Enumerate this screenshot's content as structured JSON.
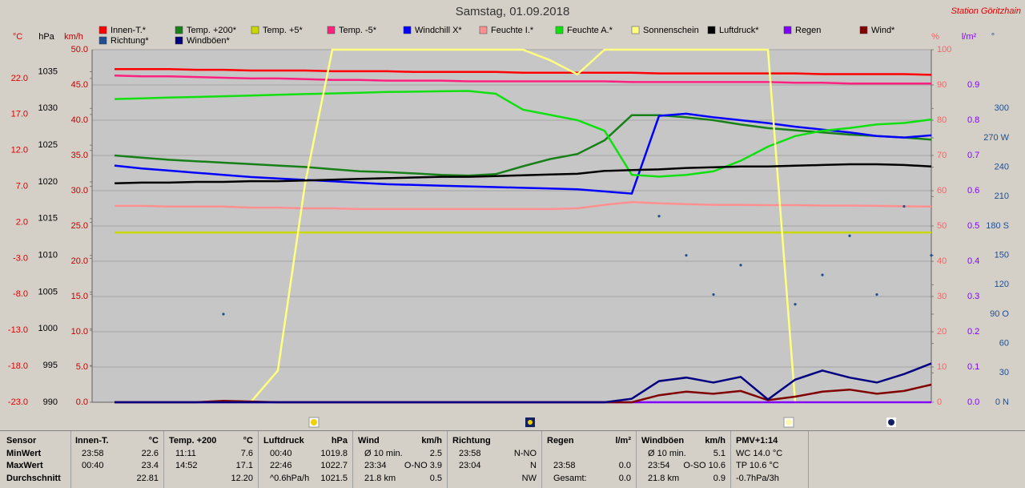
{
  "chart_data": {
    "type": "line",
    "title": "Samstag, 01.09.2018",
    "station": "Station Göritzhain",
    "grid": true,
    "axes": [
      {
        "label": "°C",
        "color": "#e00000",
        "ylim": [
          -23,
          26
        ],
        "yticks": [
          {
            "value": -23,
            "label": "-23.0"
          },
          {
            "value": -18,
            "label": "-18.0"
          },
          {
            "value": -13,
            "label": "-13.0"
          },
          {
            "value": -8,
            "label": "-8.0"
          },
          {
            "value": -3,
            "label": "-3.0"
          },
          {
            "value": 2,
            "label": "2.0"
          },
          {
            "value": 7,
            "label": "7.0"
          },
          {
            "value": 12,
            "label": "12.0"
          },
          {
            "value": 17,
            "label": "17.0"
          },
          {
            "value": 22,
            "label": "22.0"
          }
        ]
      },
      {
        "label": "hPa",
        "color": "#000000",
        "ylim": [
          990,
          1038
        ],
        "yticks": [
          990,
          995,
          1000,
          1005,
          1010,
          1015,
          1020,
          1025,
          1030,
          1035
        ]
      },
      {
        "label": "km/h",
        "color": "#c00000",
        "ylim": [
          0,
          50
        ],
        "yticks": [
          {
            "value": 0,
            "label": "0.0"
          },
          {
            "value": 5,
            "label": "5.0"
          },
          {
            "value": 10,
            "label": "10.0"
          },
          {
            "value": 15,
            "label": "15.0"
          },
          {
            "value": 20,
            "label": "20.0"
          },
          {
            "value": 25,
            "label": "25.0"
          },
          {
            "value": 30,
            "label": "30.0"
          },
          {
            "value": 35,
            "label": "35.0"
          },
          {
            "value": 40,
            "label": "40.0"
          },
          {
            "value": 45,
            "label": "45.0"
          },
          {
            "value": 50,
            "label": "50.0"
          }
        ]
      },
      {
        "label": "%",
        "color": "#ff6060",
        "ylim": [
          0,
          100
        ],
        "yticks": [
          0,
          10,
          20,
          30,
          40,
          50,
          60,
          70,
          80,
          90,
          100
        ]
      },
      {
        "label": "l/m²",
        "color": "#8000ff",
        "ylim": [
          0,
          1
        ],
        "yticks": [
          {
            "value": 0,
            "label": "0.0"
          },
          {
            "value": 0.1,
            "label": "0.1"
          },
          {
            "value": 0.2,
            "label": "0.2"
          },
          {
            "value": 0.3,
            "label": "0.3"
          },
          {
            "value": 0.4,
            "label": "0.4"
          },
          {
            "value": 0.5,
            "label": "0.5"
          },
          {
            "value": 0.6,
            "label": "0.6"
          },
          {
            "value": 0.7,
            "label": "0.7"
          },
          {
            "value": 0.8,
            "label": "0.8"
          },
          {
            "value": 0.9,
            "label": "0.9"
          }
        ]
      },
      {
        "label": "°",
        "color": "#1f4f8f",
        "ylim": [
          0,
          360
        ],
        "yticks": [
          {
            "value": 0,
            "label": "0 N"
          },
          30,
          60,
          {
            "value": 90,
            "label": "90 O"
          },
          120,
          150,
          {
            "value": 180,
            "label": "180 S"
          },
          210,
          240,
          {
            "value": 270,
            "label": "270 W"
          },
          300
        ]
      }
    ],
    "series": [
      {
        "name": "Innen-T.*",
        "color": "#ff0000",
        "axis": "°C",
        "values": [
          23.3,
          23.3,
          23.3,
          23.2,
          23.2,
          23.1,
          23.1,
          23.1,
          23.0,
          23.0,
          23.0,
          22.9,
          22.9,
          22.9,
          22.9,
          22.8,
          22.8,
          22.8,
          22.8,
          22.8,
          22.7,
          22.7,
          22.7,
          22.7,
          22.7,
          22.7,
          22.6,
          22.6,
          22.6,
          22.6,
          22.5
        ]
      },
      {
        "name": "Temp. +200*",
        "color": "#188018",
        "axis": "°C",
        "values": [
          11.3,
          11.0,
          10.7,
          10.5,
          10.3,
          10.1,
          9.9,
          9.7,
          9.4,
          9.1,
          9.0,
          8.8,
          8.6,
          8.5,
          8.7,
          9.8,
          10.8,
          11.5,
          13.4,
          16.9,
          16.9,
          16.6,
          16.2,
          15.6,
          15.1,
          14.8,
          14.5,
          14.2,
          14.0,
          13.8,
          13.5
        ]
      },
      {
        "name": "Temp. +5*",
        "color": "#c8d800",
        "axis": "°C",
        "values": [
          0.6,
          0.6,
          0.6,
          0.6,
          0.6,
          0.6,
          0.6,
          0.6,
          0.6,
          0.6,
          0.6,
          0.6,
          0.6,
          0.6,
          0.6,
          0.6,
          0.6,
          0.6,
          0.6,
          0.6,
          0.6,
          0.6,
          0.6,
          0.6,
          0.6,
          0.6,
          0.6,
          0.6,
          0.6,
          0.6,
          0.6
        ]
      },
      {
        "name": "Temp. -5*",
        "color": "#ff2080",
        "axis": "°C",
        "values": [
          22.4,
          22.3,
          22.3,
          22.2,
          22.1,
          22.0,
          22.0,
          21.9,
          21.8,
          21.8,
          21.7,
          21.7,
          21.7,
          21.6,
          21.6,
          21.6,
          21.6,
          21.6,
          21.6,
          21.5,
          21.5,
          21.5,
          21.5,
          21.5,
          21.5,
          21.4,
          21.4,
          21.3,
          21.3,
          21.3,
          21.3
        ]
      },
      {
        "name": "Windchill X*",
        "color": "#0000ff",
        "axis": "°C",
        "values": [
          9.9,
          9.5,
          9.2,
          8.9,
          8.6,
          8.3,
          8.1,
          7.9,
          7.7,
          7.5,
          7.3,
          7.2,
          7.1,
          7.0,
          6.9,
          6.8,
          6.7,
          6.6,
          6.3,
          6.0,
          16.8,
          17.1,
          16.6,
          16.2,
          15.8,
          15.3,
          14.9,
          14.5,
          14.0,
          13.8,
          14.1
        ]
      },
      {
        "name": "Feuchte I.*",
        "color": "#ff9090",
        "axis": "%",
        "values": [
          55.7,
          55.7,
          55.5,
          55.5,
          55.5,
          55.2,
          55.2,
          55.0,
          55.0,
          54.8,
          54.8,
          54.8,
          54.8,
          54.8,
          54.8,
          54.8,
          54.8,
          55.0,
          56.0,
          56.8,
          56.4,
          56.2,
          56.0,
          56.0,
          55.9,
          55.9,
          55.8,
          55.8,
          55.7,
          55.6,
          55.5
        ]
      },
      {
        "name": "Feuchte A.*",
        "color": "#10e010",
        "axis": "%",
        "values": [
          86.0,
          86.2,
          86.4,
          86.6,
          86.8,
          87.0,
          87.2,
          87.4,
          87.6,
          87.8,
          88.0,
          88.1,
          88.2,
          88.3,
          87.5,
          83.0,
          81.5,
          80.0,
          77.0,
          64.5,
          64.0,
          64.5,
          65.5,
          68.5,
          72.5,
          75.5,
          77.0,
          77.8,
          78.8,
          79.2,
          80.2
        ]
      },
      {
        "name": "Sonnenschein",
        "color": "#ffff80",
        "axis": "%",
        "values": [
          0,
          0,
          0,
          0,
          0,
          0,
          9,
          62,
          100,
          100,
          100,
          100,
          100,
          100,
          100,
          100,
          97,
          93,
          100,
          100,
          100,
          100,
          100,
          100,
          100,
          0,
          0,
          0,
          0,
          0,
          0
        ]
      },
      {
        "name": "Luftdruck*",
        "color": "#000000",
        "axis": "hPa",
        "values": [
          1019.8,
          1019.9,
          1019.9,
          1020.0,
          1020.0,
          1020.1,
          1020.1,
          1020.2,
          1020.3,
          1020.4,
          1020.5,
          1020.6,
          1020.7,
          1020.7,
          1020.8,
          1020.9,
          1021.0,
          1021.1,
          1021.5,
          1021.6,
          1021.7,
          1021.9,
          1022.0,
          1022.1,
          1022.1,
          1022.2,
          1022.3,
          1022.4,
          1022.4,
          1022.3,
          1022.1
        ]
      },
      {
        "name": "Regen",
        "color": "#8000ff",
        "axis": "l/m²",
        "values": [
          0,
          0,
          0,
          0,
          0,
          0,
          0,
          0,
          0,
          0,
          0,
          0,
          0,
          0,
          0,
          0,
          0,
          0,
          0,
          0,
          0,
          0,
          0,
          0,
          0,
          0,
          0,
          0,
          0,
          0,
          0
        ]
      },
      {
        "name": "Wind*",
        "color": "#800000",
        "axis": "km/h",
        "values": [
          0,
          0,
          0,
          0,
          0.2,
          0.1,
          0,
          0,
          0,
          0,
          0,
          0,
          0,
          0,
          0,
          0,
          0,
          0,
          0,
          0,
          1.0,
          1.5,
          1.2,
          1.6,
          0.3,
          0.8,
          1.5,
          1.8,
          1.2,
          1.6,
          2.5
        ]
      },
      {
        "name": "Richtung*",
        "color": "#1f4f8f",
        "axis": "°",
        "style": "dots",
        "values": [
          null,
          null,
          null,
          null,
          90,
          null,
          null,
          null,
          null,
          null,
          null,
          null,
          null,
          null,
          null,
          null,
          null,
          null,
          null,
          null,
          190,
          150,
          110,
          140,
          null,
          100,
          130,
          170,
          110,
          200,
          150
        ]
      },
      {
        "name": "Windböen*",
        "color": "#000080",
        "axis": "km/h",
        "values": [
          0,
          0,
          0,
          0,
          0,
          0,
          0,
          0,
          0,
          0,
          0,
          0,
          0,
          0,
          0,
          0,
          0,
          0,
          0,
          0.5,
          3.0,
          3.5,
          2.8,
          3.6,
          0.4,
          3.2,
          4.5,
          3.5,
          2.8,
          4.0,
          5.5
        ]
      }
    ]
  },
  "stats": {
    "labels": [
      "Sensor",
      "MinWert",
      "MaxWert",
      "Durchschnitt"
    ],
    "columns": [
      {
        "header": "Innen-T.",
        "unit": "°C",
        "rows": [
          [
            "23:58",
            "22.6"
          ],
          [
            "00:40",
            "23.4"
          ],
          [
            "22.81"
          ]
        ]
      },
      {
        "header": "Temp. +200",
        "unit": "°C",
        "rows": [
          [
            "11:11",
            "7.6"
          ],
          [
            "14:52",
            "17.1"
          ],
          [
            "12.20"
          ]
        ]
      },
      {
        "header": "Luftdruck",
        "unit": "hPa",
        "rows": [
          [
            "00:40",
            "1019.8"
          ],
          [
            "22:46",
            "1022.7"
          ],
          [
            "^0.6hPa/h",
            "1021.5"
          ]
        ]
      },
      {
        "header": "Wind",
        "unit": "km/h",
        "rows": [
          [
            "Ø 10 min.",
            "2.5"
          ],
          [
            "23:34",
            "O-NO 3.9"
          ],
          [
            "21.8 km",
            "0.5"
          ]
        ]
      },
      {
        "header": "Richtung",
        "rows": [
          [
            "23:58",
            "N-NO"
          ],
          [
            "23:04",
            "N"
          ],
          [
            "NW"
          ]
        ]
      },
      {
        "header": "Regen",
        "unit": "l/m²",
        "rows": [
          [],
          [
            "23:58",
            "0.0"
          ],
          [
            "Gesamt:",
            "0.0"
          ]
        ]
      },
      {
        "header": "Windböen",
        "unit": "km/h",
        "rows": [
          [
            "Ø 10 min.",
            "5.1"
          ],
          [
            "23:54",
            "O-SO 10.6"
          ],
          [
            "21.8 km",
            "0.9"
          ]
        ]
      },
      {
        "header": "PMV+1:14",
        "rows": [
          [
            "WC 14.0 °C"
          ],
          [
            "TP 10.6 °C"
          ],
          [
            "-0.7hPa/3h"
          ]
        ]
      }
    ]
  }
}
